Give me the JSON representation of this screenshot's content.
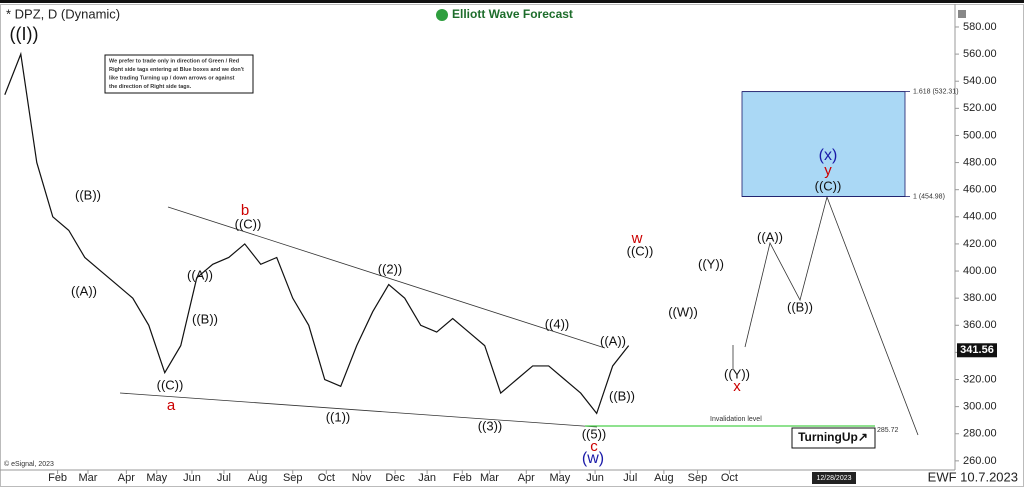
{
  "chart_data": {
    "type": "line",
    "title": "* DPZ, D (Dynamic)",
    "brand": "Elliott Wave Forecast",
    "footer": "EWF 10.7.2023",
    "copyright": "© eSignal, 2023",
    "date_box": "12/28/2023",
    "badge": "TurningUp↗",
    "note": [
      "We prefer to trade only in direction of Green / Red",
      "Right side tags entering at Blue boxes and we don't",
      "like trading Turning up / down arrows or against",
      "the direction of Right side tags."
    ],
    "series": [
      {
        "name": "DPZ",
        "color": "#111111",
        "values": [
          530,
          560,
          480,
          440,
          430,
          410,
          400,
          390,
          380,
          360,
          325,
          345,
          395,
          405,
          410,
          420,
          405,
          410,
          380,
          360,
          320,
          315,
          345,
          370,
          390,
          380,
          360,
          355,
          365,
          355,
          345,
          310,
          320,
          330,
          330,
          320,
          310,
          295,
          330,
          345
        ]
      }
    ],
    "last_price": 341.56,
    "fib_levels": [
      {
        "value": 532.31,
        "label": "1.618 (532.31)"
      },
      {
        "value": 454.98,
        "label": "1 (454.98)"
      }
    ],
    "invalidation": {
      "value": 285.72,
      "label": "285.72",
      "text": "Invalidation level"
    },
    "xlim": [
      -0.3,
      59.4
    ],
    "xticks": [
      {
        "value": 3.3,
        "label": "Feb"
      },
      {
        "value": 5.2,
        "label": "Mar"
      },
      {
        "value": 7.6,
        "label": "Apr"
      },
      {
        "value": 9.5,
        "label": "May"
      },
      {
        "value": 11.7,
        "label": "Jun"
      },
      {
        "value": 13.7,
        "label": "Jul"
      },
      {
        "value": 15.8,
        "label": "Aug"
      },
      {
        "value": 18.0,
        "label": "Sep"
      },
      {
        "value": 20.1,
        "label": "Oct"
      },
      {
        "value": 22.3,
        "label": "Nov"
      },
      {
        "value": 24.4,
        "label": "Dec"
      },
      {
        "value": 26.4,
        "label": "Jan"
      },
      {
        "value": 28.6,
        "label": "Feb"
      },
      {
        "value": 30.3,
        "label": "Mar"
      },
      {
        "value": 32.6,
        "label": "Apr"
      },
      {
        "value": 34.7,
        "label": "May"
      },
      {
        "value": 36.9,
        "label": "Jun"
      },
      {
        "value": 39.1,
        "label": "Jul"
      },
      {
        "value": 41.2,
        "label": "Aug"
      },
      {
        "value": 43.3,
        "label": "Sep"
      },
      {
        "value": 45.3,
        "label": "Oct"
      }
    ],
    "ylim": [
      254,
      594
    ],
    "yticks": [
      {
        "value": 260,
        "label": "260.00"
      },
      {
        "value": 280,
        "label": "280.00"
      },
      {
        "value": 300,
        "label": "300.00"
      },
      {
        "value": 320,
        "label": "320.00"
      },
      {
        "value": 340,
        "label": "340.00"
      },
      {
        "value": 360,
        "label": "360.00"
      },
      {
        "value": 380,
        "label": "380.00"
      },
      {
        "value": 400,
        "label": "400.00"
      },
      {
        "value": 420,
        "label": "420.00"
      },
      {
        "value": 440,
        "label": "440.00"
      },
      {
        "value": 460,
        "label": "460.00"
      },
      {
        "value": 480,
        "label": "480.00"
      },
      {
        "value": 500,
        "label": "500.00"
      },
      {
        "value": 520,
        "label": "520.00"
      },
      {
        "value": 540,
        "label": "540.00"
      },
      {
        "value": 560,
        "label": "560.00"
      },
      {
        "value": 580,
        "label": "580.00"
      }
    ],
    "annotations": [
      {
        "text": "((I))",
        "color": "#111111"
      },
      {
        "text": "((B))",
        "color": "#111111"
      },
      {
        "text": "((A))",
        "color": "#111111"
      },
      {
        "text": "((A))",
        "color": "#111111"
      },
      {
        "text": "((B))",
        "color": "#111111"
      },
      {
        "text": "((C))",
        "color": "#111111"
      },
      {
        "text": "a",
        "color": "#cc0000"
      },
      {
        "text": "b",
        "color": "#cc0000"
      },
      {
        "text": "((C))",
        "color": "#111111"
      },
      {
        "text": "((2))",
        "color": "#111111"
      },
      {
        "text": "((1))",
        "color": "#111111"
      },
      {
        "text": "((3))",
        "color": "#111111"
      },
      {
        "text": "((4))",
        "color": "#111111"
      },
      {
        "text": "((A))",
        "color": "#111111"
      },
      {
        "text": "((B))",
        "color": "#111111"
      },
      {
        "text": "((5))",
        "color": "#111111"
      },
      {
        "text": "c",
        "color": "#cc0000"
      },
      {
        "text": "(w)",
        "color": "#1a1aa8"
      },
      {
        "text": "w",
        "color": "#cc0000"
      },
      {
        "text": "((C))",
        "color": "#111111"
      },
      {
        "text": "((W))",
        "color": "#111111"
      },
      {
        "text": "((Y))",
        "color": "#111111"
      },
      {
        "text": "((Y))",
        "color": "#111111"
      },
      {
        "text": "x",
        "color": "#cc0000"
      },
      {
        "text": "((A))",
        "color": "#111111"
      },
      {
        "text": "((B))",
        "color": "#111111"
      },
      {
        "text": "(x)",
        "color": "#1a1aa8"
      },
      {
        "text": "y",
        "color": "#cc0000"
      },
      {
        "text": "((C))",
        "color": "#111111"
      }
    ]
  }
}
